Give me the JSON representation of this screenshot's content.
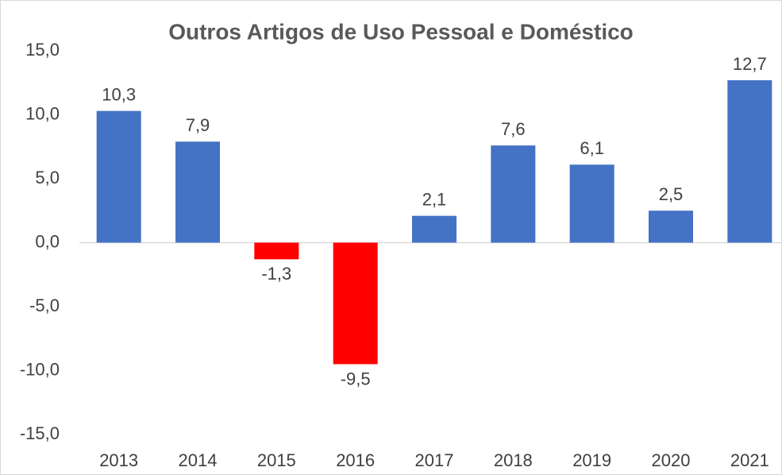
{
  "chart_data": {
    "type": "bar",
    "title": "Outros Artigos de Uso Pessoal e Doméstico",
    "categories": [
      "2013",
      "2014",
      "2015",
      "2016",
      "2017",
      "2018",
      "2019",
      "2020",
      "2021"
    ],
    "values": [
      10.3,
      7.9,
      -1.3,
      -9.5,
      2.1,
      7.6,
      6.1,
      2.5,
      12.7
    ],
    "value_labels": [
      "10,3",
      "7,9",
      "-1,3",
      "-9,5",
      "2,1",
      "7,6",
      "6,1",
      "2,5",
      "12,7"
    ],
    "colors": [
      "#4472c4",
      "#4472c4",
      "#ff0000",
      "#ff0000",
      "#4472c4",
      "#4472c4",
      "#4472c4",
      "#4472c4",
      "#4472c4"
    ],
    "ylim": [
      -15,
      15
    ],
    "yticks": [
      {
        "value": -15,
        "label": "-15,0"
      },
      {
        "value": -10,
        "label": "-10,0"
      },
      {
        "value": -5,
        "label": "-5,0"
      },
      {
        "value": 0,
        "label": "0,0"
      },
      {
        "value": 5,
        "label": "5,0"
      },
      {
        "value": 10,
        "label": "10,0"
      },
      {
        "value": 15,
        "label": "15,0"
      }
    ],
    "grid": false
  }
}
